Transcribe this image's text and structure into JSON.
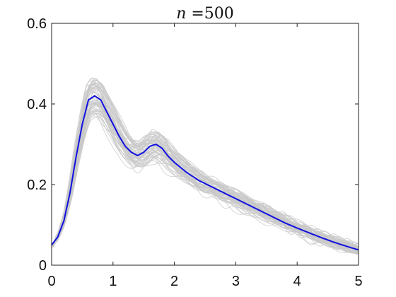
{
  "chart_data": {
    "type": "line",
    "title_italic": "n",
    "title_rest": " =500",
    "xlim": [
      0,
      5
    ],
    "ylim": [
      0,
      0.6
    ],
    "x_ticks": [
      0,
      1,
      2,
      3,
      4,
      5
    ],
    "x_tick_labels": [
      "0",
      "1",
      "2",
      "3",
      "4",
      "5"
    ],
    "y_ticks": [
      0,
      0.2,
      0.4,
      0.6
    ],
    "y_tick_labels": [
      "0",
      "0.2",
      "0.4",
      "0.6"
    ],
    "grid": false,
    "legend": "none",
    "series": [
      {
        "color": "#1010e0",
        "x": [
          0,
          0.1,
          0.2,
          0.3,
          0.4,
          0.5,
          0.6,
          0.7,
          0.8,
          0.9,
          1.0,
          1.1,
          1.2,
          1.3,
          1.4,
          1.5,
          1.6,
          1.7,
          1.8,
          1.9,
          2.0,
          2.2,
          2.4,
          2.6,
          2.8,
          3.0,
          3.2,
          3.4,
          3.6,
          3.8,
          4.0,
          4.2,
          4.4,
          4.6,
          4.8,
          5.0
        ],
        "y": [
          0.05,
          0.07,
          0.11,
          0.18,
          0.27,
          0.35,
          0.41,
          0.42,
          0.41,
          0.38,
          0.35,
          0.32,
          0.295,
          0.28,
          0.272,
          0.28,
          0.295,
          0.3,
          0.29,
          0.27,
          0.255,
          0.23,
          0.21,
          0.195,
          0.18,
          0.165,
          0.15,
          0.135,
          0.12,
          0.105,
          0.092,
          0.08,
          0.068,
          0.057,
          0.047,
          0.038
        ]
      }
    ],
    "replicates": {
      "color": "#c8c8c8",
      "count": 60
    }
  }
}
